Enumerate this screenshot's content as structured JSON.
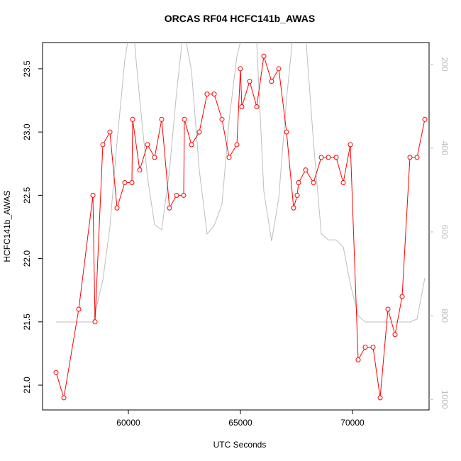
{
  "chart_data": {
    "type": "line",
    "title": "ORCAS RF04 HCFC141b_AWAS",
    "x_label": "UTC Seconds",
    "y_label": "HCFC141b_AWAS",
    "xlim": [
      56171,
      73418
    ],
    "ylim": [
      20.804,
      23.707
    ],
    "y2lim": [
      1025,
      148
    ],
    "xticks": [
      60000,
      65000,
      70000
    ],
    "yticks": [
      {
        "value": 21,
        "label": "21.0"
      },
      21.5,
      {
        "value": 22,
        "label": "22.0"
      },
      22.5,
      {
        "value": 23,
        "label": "23.0"
      },
      23.5
    ],
    "y2ticks": [
      200,
      400,
      600,
      800,
      1000
    ],
    "y2_color": "#bebebe",
    "series": [
      {
        "color": "#bebebe",
        "axis": "y2",
        "x": [
          56772,
          58418,
          58861,
          59177,
          59494,
          59842,
          60158,
          60506,
          60854,
          61171,
          61487,
          61835,
          62152,
          62468,
          62816,
          63165,
          63513,
          63829,
          64177,
          64494,
          64842,
          65158,
          65728,
          66044,
          66392,
          66709,
          67057,
          67373,
          67690,
          67911,
          68259,
          68608,
          68924,
          69272,
          69589,
          69905,
          70253,
          70570,
          70918,
          71234,
          71582,
          71899,
          72215,
          72563,
          72880,
          73228
        ],
        "values": [
          815,
          815,
          715,
          588,
          385,
          190,
          80,
          283,
          470,
          583,
          595,
          453,
          266,
          114,
          215,
          453,
          605,
          585,
          534,
          334,
          181,
          114,
          148,
          503,
          622,
          520,
          283,
          114,
          80,
          131,
          385,
          605,
          619,
          619,
          636,
          724,
          800,
          815,
          815,
          815,
          815,
          815,
          815,
          815,
          808,
          710
        ]
      },
      {
        "color": "#ff0000",
        "markers": true,
        "x": [
          56772,
          57120,
          57785,
          58418,
          58513,
          58861,
          59177,
          59494,
          59842,
          60158,
          60190,
          60506,
          60854,
          61171,
          61487,
          61835,
          62152,
          62468,
          62500,
          62816,
          63165,
          63513,
          63829,
          64177,
          64494,
          64842,
          65000,
          65063,
          65411,
          65728,
          66044,
          66392,
          66709,
          67057,
          67373,
          67532,
          67595,
          67911,
          68259,
          68608,
          68924,
          69272,
          69589,
          69905,
          70253,
          70570,
          70918,
          71234,
          71582,
          71899,
          72215,
          72563,
          72880,
          73228
        ],
        "values": [
          21.1,
          20.9,
          21.6,
          22.5,
          21.5,
          22.9,
          23.0,
          22.4,
          22.6,
          22.6,
          23.1,
          22.7,
          22.9,
          22.8,
          23.1,
          22.4,
          22.5,
          22.5,
          23.1,
          22.9,
          23.0,
          23.3,
          23.3,
          23.1,
          22.8,
          22.9,
          23.5,
          23.2,
          23.4,
          23.2,
          23.6,
          23.4,
          23.5,
          23.0,
          22.4,
          22.5,
          22.6,
          22.7,
          22.6,
          22.8,
          22.8,
          22.8,
          22.6,
          22.9,
          21.2,
          21.3,
          21.3,
          20.9,
          21.6,
          21.4,
          21.7,
          22.8,
          22.8,
          23.1
        ]
      }
    ]
  }
}
